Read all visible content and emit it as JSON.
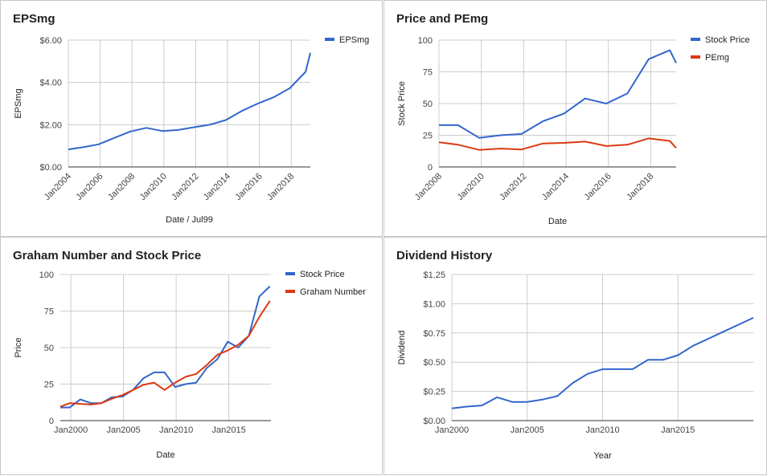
{
  "colors": {
    "blue": "#3366cc",
    "red": "#dc3912",
    "grid": "#cccccc",
    "axis": "#333333"
  },
  "chart_data": [
    {
      "id": "eps",
      "type": "line",
      "title": "EPSmg",
      "xlabel": "Date / Jul99",
      "ylabel": "EPSmg",
      "ylim": [
        0,
        6
      ],
      "grid": true,
      "legend": "right",
      "yticks": [
        {
          "v": 0,
          "label": "$0.00"
        },
        {
          "v": 2,
          "label": "$2.00"
        },
        {
          "v": 4,
          "label": "$4.00"
        },
        {
          "v": 6,
          "label": "$6.00"
        }
      ],
      "xlim": [
        2004,
        2019.2
      ],
      "xticks": [
        {
          "v": 2004,
          "label": "Jan2004"
        },
        {
          "v": 2006,
          "label": "Jan2006"
        },
        {
          "v": 2008,
          "label": "Jan2008"
        },
        {
          "v": 2010,
          "label": "Jan2010"
        },
        {
          "v": 2012,
          "label": "Jan2012"
        },
        {
          "v": 2014,
          "label": "Jan2014"
        },
        {
          "v": 2016,
          "label": "Jan2016"
        },
        {
          "v": 2018,
          "label": "Jan2018"
        }
      ],
      "xtick_rotate": true,
      "series": [
        {
          "name": "EPSmg",
          "color": "#3366cc",
          "x": [
            2004,
            2004.9,
            2005.9,
            2006.9,
            2007.9,
            2008.9,
            2009.9,
            2010.9,
            2011.9,
            2012.9,
            2013.9,
            2014.9,
            2015.9,
            2016.9,
            2017.9,
            2018.9,
            2019.2
          ],
          "y": [
            0.83,
            0.93,
            1.07,
            1.38,
            1.68,
            1.85,
            1.7,
            1.75,
            1.88,
            2.0,
            2.22,
            2.65,
            3.0,
            3.3,
            3.72,
            4.5,
            5.4
          ]
        }
      ]
    },
    {
      "id": "pe",
      "type": "line",
      "title": "Price and PEmg",
      "xlabel": "Date",
      "ylabel": "Stock Price",
      "ylim": [
        0,
        100
      ],
      "grid": true,
      "legend": "right",
      "yticks": [
        {
          "v": 0,
          "label": "0"
        },
        {
          "v": 25,
          "label": "25"
        },
        {
          "v": 50,
          "label": "50"
        },
        {
          "v": 75,
          "label": "75"
        },
        {
          "v": 100,
          "label": "100"
        }
      ],
      "xlim": [
        2008,
        2019.2
      ],
      "xticks": [
        {
          "v": 2008,
          "label": "Jan2008"
        },
        {
          "v": 2010,
          "label": "Jan2010"
        },
        {
          "v": 2012,
          "label": "Jan2012"
        },
        {
          "v": 2014,
          "label": "Jan2014"
        },
        {
          "v": 2016,
          "label": "Jan2016"
        },
        {
          "v": 2018,
          "label": "Jan2018"
        }
      ],
      "xtick_rotate": true,
      "series": [
        {
          "name": "Stock Price",
          "color": "#3366cc",
          "x": [
            2008,
            2008.9,
            2009.9,
            2010.9,
            2011.9,
            2012.9,
            2013.9,
            2014.9,
            2015.9,
            2016.9,
            2017.9,
            2018.9,
            2019.2
          ],
          "y": [
            33,
            33,
            23,
            25,
            26,
            36,
            42,
            54,
            50,
            58,
            85,
            92,
            82
          ]
        },
        {
          "name": "PEmg",
          "color": "#dc3912",
          "x": [
            2008,
            2008.9,
            2009.9,
            2010.9,
            2011.9,
            2012.9,
            2013.9,
            2014.9,
            2015.9,
            2016.9,
            2017.9,
            2018.9,
            2019.2
          ],
          "y": [
            19.5,
            17.5,
            13.5,
            14.5,
            13.8,
            18.5,
            19,
            20,
            16.5,
            17.5,
            22.5,
            20.5,
            15
          ]
        }
      ]
    },
    {
      "id": "graham",
      "type": "line",
      "title": "Graham Number and Stock Price",
      "xlabel": "Date",
      "ylabel": "Price",
      "ylim": [
        0,
        100
      ],
      "grid": true,
      "legend": "right",
      "yticks": [
        {
          "v": 0,
          "label": "0"
        },
        {
          "v": 25,
          "label": "25"
        },
        {
          "v": 50,
          "label": "50"
        },
        {
          "v": 75,
          "label": "75"
        },
        {
          "v": 100,
          "label": "100"
        }
      ],
      "xlim": [
        1999,
        2019
      ],
      "xticks": [
        {
          "v": 2000,
          "label": "Jan2000"
        },
        {
          "v": 2005,
          "label": "Jan2005"
        },
        {
          "v": 2010,
          "label": "Jan2010"
        },
        {
          "v": 2015,
          "label": "Jan2015"
        }
      ],
      "xtick_rotate": false,
      "series": [
        {
          "name": "Stock Price",
          "color": "#3366cc",
          "x": [
            1999,
            1999.9,
            2000.9,
            2001.9,
            2002.9,
            2003.9,
            2004.9,
            2005.9,
            2006.9,
            2007.9,
            2008.9,
            2009.9,
            2010.9,
            2011.9,
            2012.9,
            2013.9,
            2014.9,
            2015.9,
            2016.9,
            2017.9,
            2018.9
          ],
          "y": [
            9,
            9,
            14.5,
            12,
            12,
            16,
            16.5,
            21,
            29,
            33,
            33,
            23,
            25,
            26,
            36,
            42,
            54,
            50,
            58,
            85,
            92
          ]
        },
        {
          "name": "Graham Number",
          "color": "#dc3912",
          "x": [
            1999,
            1999.9,
            2000.9,
            2001.9,
            2002.9,
            2003.9,
            2004.9,
            2005.9,
            2006.9,
            2007.9,
            2008.9,
            2009.9,
            2010.9,
            2011.9,
            2012.9,
            2013.9,
            2014.9,
            2015.9,
            2016.9,
            2017.9,
            2018.9
          ],
          "y": [
            9.5,
            12,
            11.5,
            11,
            12,
            15,
            17.5,
            21,
            24.5,
            26,
            21,
            26,
            30,
            32,
            38,
            45,
            48,
            52,
            58,
            71,
            82
          ]
        }
      ]
    },
    {
      "id": "div",
      "type": "line",
      "title": "Dividend History",
      "xlabel": "Year",
      "ylabel": "Dividend",
      "ylim": [
        0,
        1.25
      ],
      "grid": true,
      "legend": "none",
      "yticks": [
        {
          "v": 0,
          "label": "$0.00"
        },
        {
          "v": 0.25,
          "label": "$0.25"
        },
        {
          "v": 0.5,
          "label": "$0.50"
        },
        {
          "v": 0.75,
          "label": "$0.75"
        },
        {
          "v": 1.0,
          "label": "$1.00"
        },
        {
          "v": 1.25,
          "label": "$1.25"
        }
      ],
      "xlim": [
        2000,
        2020
      ],
      "xticks": [
        {
          "v": 2000,
          "label": "Jan2000"
        },
        {
          "v": 2005,
          "label": "Jan2005"
        },
        {
          "v": 2010,
          "label": "Jan2010"
        },
        {
          "v": 2015,
          "label": "Jan2015"
        }
      ],
      "xtick_rotate": false,
      "series": [
        {
          "name": "",
          "color": "#3366cc",
          "x": [
            2000,
            2001,
            2002,
            2003,
            2004,
            2005,
            2006,
            2007,
            2008,
            2009,
            2010,
            2011,
            2012,
            2013,
            2014,
            2015,
            2016,
            2017,
            2018,
            2019,
            2020
          ],
          "y": [
            0.105,
            0.12,
            0.13,
            0.2,
            0.16,
            0.16,
            0.18,
            0.21,
            0.32,
            0.4,
            0.44,
            0.44,
            0.44,
            0.52,
            0.52,
            0.56,
            0.64,
            0.7,
            0.76,
            0.82,
            0.88
          ]
        }
      ]
    }
  ]
}
